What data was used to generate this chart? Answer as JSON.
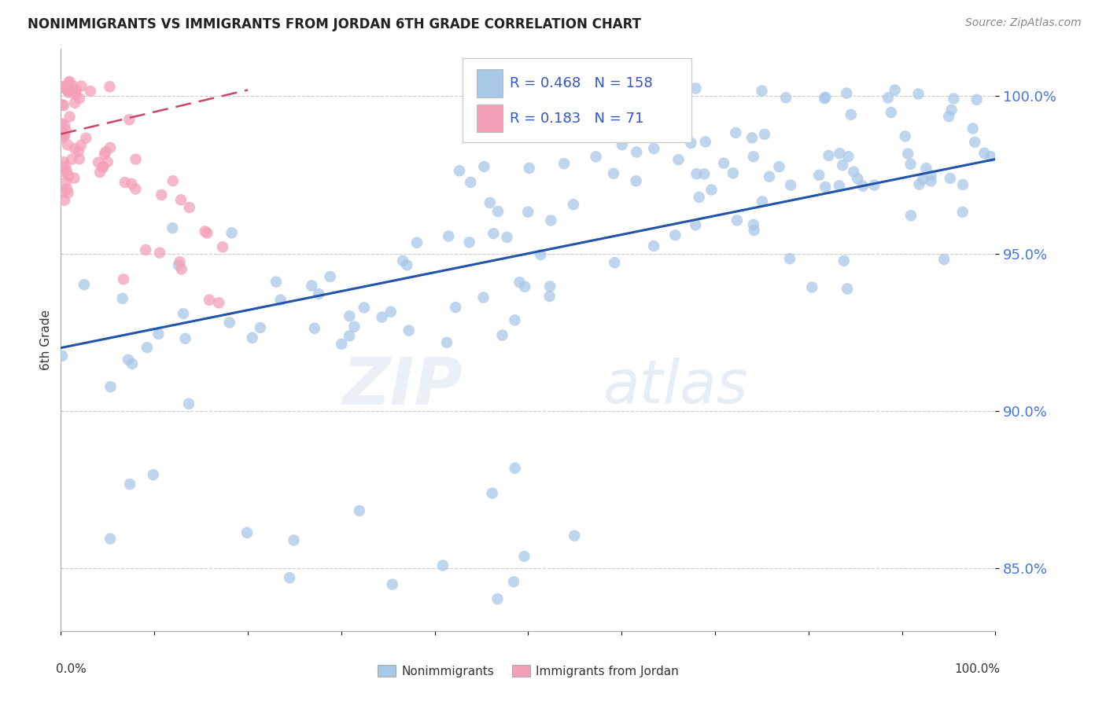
{
  "title": "NONIMMIGRANTS VS IMMIGRANTS FROM JORDAN 6TH GRADE CORRELATION CHART",
  "source": "Source: ZipAtlas.com",
  "ylabel": "6th Grade",
  "legend_blue_r": "0.468",
  "legend_blue_n": "158",
  "legend_pink_r": "0.183",
  "legend_pink_n": "71",
  "blue_color": "#a8c8e8",
  "pink_color": "#f4a0b8",
  "blue_line_color": "#2255aa",
  "pink_line_color": "#cc4466",
  "legend_text_color": "#3355cc",
  "background_color": "#ffffff",
  "grid_color": "#cccccc",
  "ytick_color": "#4477dd",
  "blue_trend_x": [
    0.0,
    1.0
  ],
  "blue_trend_y": [
    92.0,
    98.0
  ],
  "pink_trend_x": [
    0.0,
    0.2
  ],
  "pink_trend_y": [
    98.8,
    100.2
  ],
  "xlim": [
    0.0,
    1.0
  ],
  "ylim": [
    83.0,
    101.5
  ],
  "yticks": [
    85.0,
    90.0,
    95.0,
    100.0
  ],
  "ytick_labels": [
    "85.0%",
    "90.0%",
    "95.0%",
    "100.0%"
  ]
}
